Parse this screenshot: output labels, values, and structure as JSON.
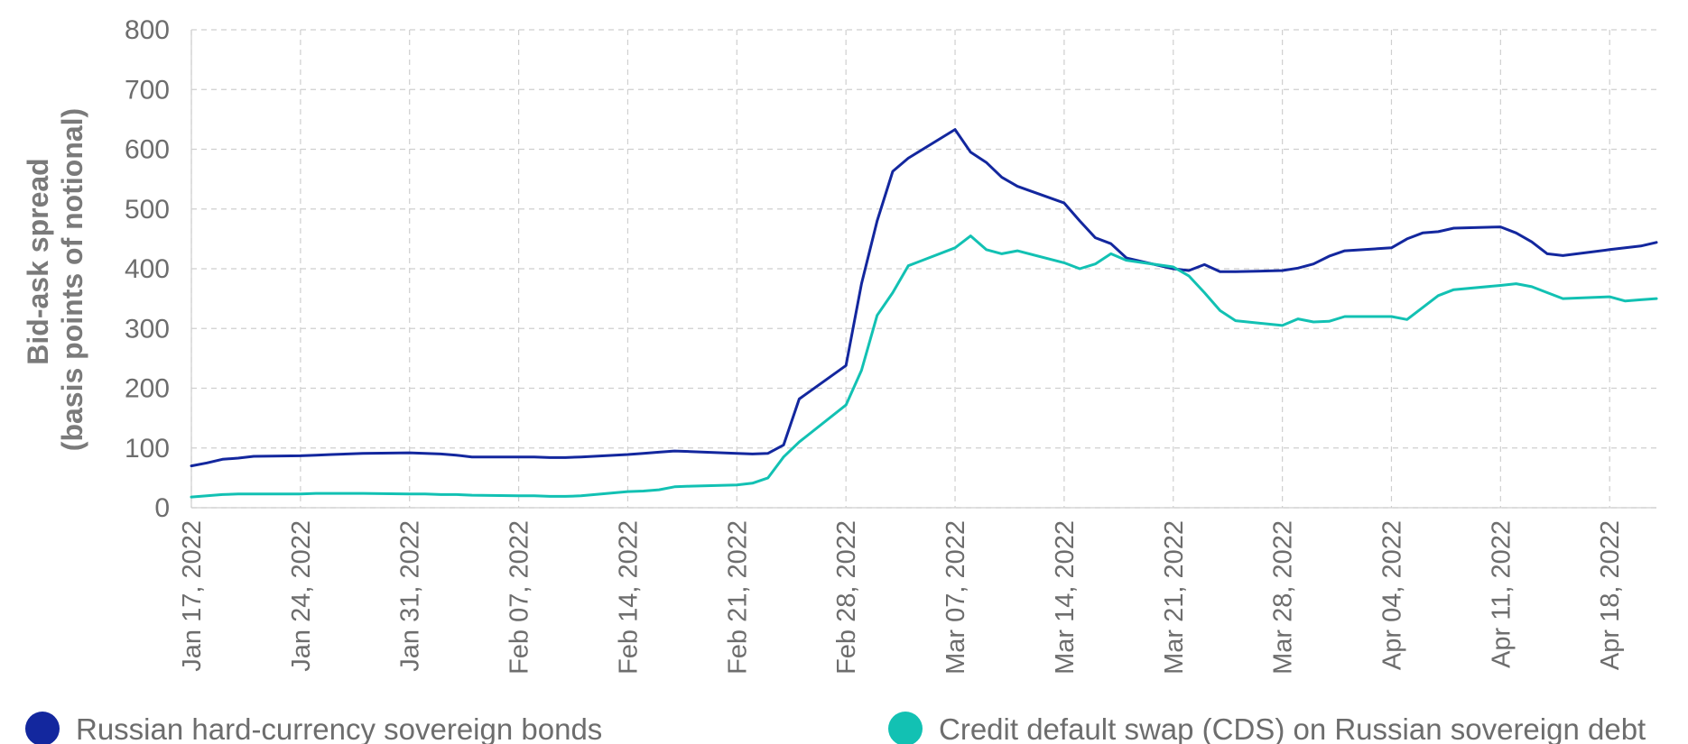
{
  "chart_data": {
    "type": "line",
    "title": "",
    "ylabel_lines": [
      "Bid-ask spread",
      "(basis points of notional)"
    ],
    "xlabel": "",
    "x_start": "2022-01-17",
    "x_end": "2022-04-21",
    "ylim": [
      0,
      800
    ],
    "yticks": [
      0,
      100,
      200,
      300,
      400,
      500,
      600,
      700,
      800
    ],
    "xticks": [
      {
        "date": "2022-01-17",
        "label": "Jan 17, 2022"
      },
      {
        "date": "2022-01-24",
        "label": "Jan 24, 2022"
      },
      {
        "date": "2022-01-31",
        "label": "Jan 31, 2022"
      },
      {
        "date": "2022-02-07",
        "label": "Feb 07, 2022"
      },
      {
        "date": "2022-02-14",
        "label": "Feb 14, 2022"
      },
      {
        "date": "2022-02-21",
        "label": "Feb 21, 2022"
      },
      {
        "date": "2022-02-28",
        "label": "Feb 28, 2022"
      },
      {
        "date": "2022-03-07",
        "label": "Mar 07, 2022"
      },
      {
        "date": "2022-03-14",
        "label": "Mar 14, 2022"
      },
      {
        "date": "2022-03-21",
        "label": "Mar 21, 2022"
      },
      {
        "date": "2022-03-28",
        "label": "Mar 28, 2022"
      },
      {
        "date": "2022-04-04",
        "label": "Apr 04, 2022"
      },
      {
        "date": "2022-04-11",
        "label": "Apr 11, 2022"
      },
      {
        "date": "2022-04-18",
        "label": "Apr 18, 2022"
      }
    ],
    "grid": true,
    "legend_position": "bottom",
    "series": [
      {
        "name": "Russian hard-currency sovereign bonds",
        "color": "#13279e",
        "points": [
          [
            "2022-01-17",
            70
          ],
          [
            "2022-01-18",
            75
          ],
          [
            "2022-01-19",
            81
          ],
          [
            "2022-01-20",
            83
          ],
          [
            "2022-01-21",
            86
          ],
          [
            "2022-01-24",
            87
          ],
          [
            "2022-01-25",
            88
          ],
          [
            "2022-01-26",
            89
          ],
          [
            "2022-01-27",
            90
          ],
          [
            "2022-01-28",
            91
          ],
          [
            "2022-01-31",
            92
          ],
          [
            "2022-02-01",
            91
          ],
          [
            "2022-02-02",
            90
          ],
          [
            "2022-02-03",
            88
          ],
          [
            "2022-02-04",
            85
          ],
          [
            "2022-02-07",
            85
          ],
          [
            "2022-02-08",
            85
          ],
          [
            "2022-02-09",
            84
          ],
          [
            "2022-02-10",
            84
          ],
          [
            "2022-02-11",
            85
          ],
          [
            "2022-02-14",
            89
          ],
          [
            "2022-02-15",
            91
          ],
          [
            "2022-02-16",
            93
          ],
          [
            "2022-02-17",
            95
          ],
          [
            "2022-02-18",
            94
          ],
          [
            "2022-02-21",
            91
          ],
          [
            "2022-02-22",
            90
          ],
          [
            "2022-02-23",
            91
          ],
          [
            "2022-02-24",
            105
          ],
          [
            "2022-02-25",
            182
          ],
          [
            "2022-02-28",
            238
          ],
          [
            "2022-03-01",
            375
          ],
          [
            "2022-03-02",
            480
          ],
          [
            "2022-03-03",
            563
          ],
          [
            "2022-03-04",
            585
          ],
          [
            "2022-03-07",
            633
          ],
          [
            "2022-03-08",
            595
          ],
          [
            "2022-03-09",
            578
          ],
          [
            "2022-03-10",
            553
          ],
          [
            "2022-03-11",
            538
          ],
          [
            "2022-03-14",
            510
          ],
          [
            "2022-03-15",
            480
          ],
          [
            "2022-03-16",
            452
          ],
          [
            "2022-03-17",
            442
          ],
          [
            "2022-03-18",
            418
          ],
          [
            "2022-03-21",
            400
          ],
          [
            "2022-03-22",
            397
          ],
          [
            "2022-03-23",
            407
          ],
          [
            "2022-03-24",
            395
          ],
          [
            "2022-03-25",
            395
          ],
          [
            "2022-03-28",
            397
          ],
          [
            "2022-03-29",
            401
          ],
          [
            "2022-03-30",
            408
          ],
          [
            "2022-03-31",
            421
          ],
          [
            "2022-04-01",
            430
          ],
          [
            "2022-04-04",
            435
          ],
          [
            "2022-04-05",
            450
          ],
          [
            "2022-04-06",
            460
          ],
          [
            "2022-04-07",
            462
          ],
          [
            "2022-04-08",
            468
          ],
          [
            "2022-04-11",
            470
          ],
          [
            "2022-04-12",
            460
          ],
          [
            "2022-04-13",
            445
          ],
          [
            "2022-04-14",
            425
          ],
          [
            "2022-04-15",
            422
          ],
          [
            "2022-04-18",
            432
          ],
          [
            "2022-04-19",
            435
          ],
          [
            "2022-04-20",
            438
          ],
          [
            "2022-04-21",
            444
          ]
        ]
      },
      {
        "name": "Credit default swap (CDS) on Russian sovereign debt",
        "color": "#12c1b3",
        "points": [
          [
            "2022-01-17",
            18
          ],
          [
            "2022-01-18",
            20
          ],
          [
            "2022-01-19",
            22
          ],
          [
            "2022-01-20",
            23
          ],
          [
            "2022-01-21",
            23
          ],
          [
            "2022-01-24",
            23
          ],
          [
            "2022-01-25",
            24
          ],
          [
            "2022-01-26",
            24
          ],
          [
            "2022-01-27",
            24
          ],
          [
            "2022-01-28",
            24
          ],
          [
            "2022-01-31",
            23
          ],
          [
            "2022-02-01",
            23
          ],
          [
            "2022-02-02",
            22
          ],
          [
            "2022-02-03",
            22
          ],
          [
            "2022-02-04",
            21
          ],
          [
            "2022-02-07",
            20
          ],
          [
            "2022-02-08",
            20
          ],
          [
            "2022-02-09",
            19
          ],
          [
            "2022-02-10",
            19
          ],
          [
            "2022-02-11",
            20
          ],
          [
            "2022-02-14",
            27
          ],
          [
            "2022-02-15",
            28
          ],
          [
            "2022-02-16",
            30
          ],
          [
            "2022-02-17",
            35
          ],
          [
            "2022-02-18",
            36
          ],
          [
            "2022-02-21",
            38
          ],
          [
            "2022-02-22",
            41
          ],
          [
            "2022-02-23",
            50
          ],
          [
            "2022-02-24",
            85
          ],
          [
            "2022-02-25",
            110
          ],
          [
            "2022-02-28",
            172
          ],
          [
            "2022-03-01",
            230
          ],
          [
            "2022-03-02",
            322
          ],
          [
            "2022-03-03",
            360
          ],
          [
            "2022-03-04",
            405
          ],
          [
            "2022-03-07",
            435
          ],
          [
            "2022-03-08",
            455
          ],
          [
            "2022-03-09",
            432
          ],
          [
            "2022-03-10",
            425
          ],
          [
            "2022-03-11",
            430
          ],
          [
            "2022-03-14",
            410
          ],
          [
            "2022-03-15",
            400
          ],
          [
            "2022-03-16",
            408
          ],
          [
            "2022-03-17",
            425
          ],
          [
            "2022-03-18",
            414
          ],
          [
            "2022-03-21",
            403
          ],
          [
            "2022-03-22",
            388
          ],
          [
            "2022-03-23",
            360
          ],
          [
            "2022-03-24",
            330
          ],
          [
            "2022-03-25",
            313
          ],
          [
            "2022-03-28",
            305
          ],
          [
            "2022-03-29",
            316
          ],
          [
            "2022-03-30",
            311
          ],
          [
            "2022-03-31",
            312
          ],
          [
            "2022-04-01",
            320
          ],
          [
            "2022-04-04",
            320
          ],
          [
            "2022-04-05",
            315
          ],
          [
            "2022-04-06",
            335
          ],
          [
            "2022-04-07",
            355
          ],
          [
            "2022-04-08",
            365
          ],
          [
            "2022-04-11",
            372
          ],
          [
            "2022-04-12",
            375
          ],
          [
            "2022-04-13",
            370
          ],
          [
            "2022-04-14",
            360
          ],
          [
            "2022-04-15",
            350
          ],
          [
            "2022-04-18",
            353
          ],
          [
            "2022-04-19",
            346
          ],
          [
            "2022-04-20",
            348
          ],
          [
            "2022-04-21",
            350
          ]
        ]
      }
    ]
  }
}
